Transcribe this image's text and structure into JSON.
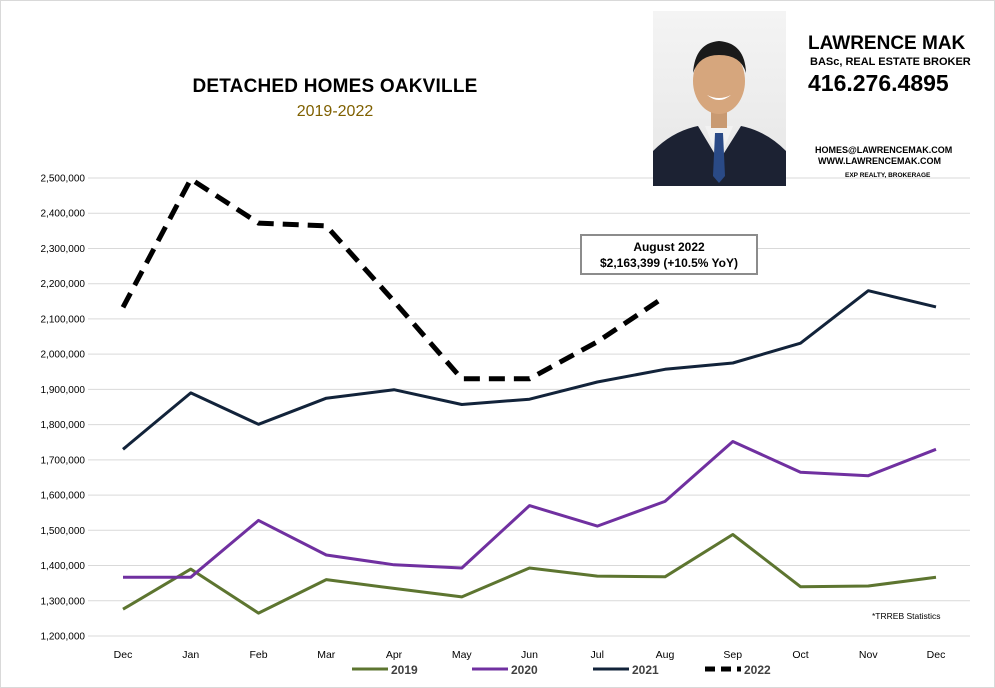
{
  "chart_data": {
    "type": "line",
    "title": "DETACHED HOMES OAKVILLE",
    "subtitle": "2019-2022",
    "categories": [
      "Dec",
      "Jan",
      "Feb",
      "Mar",
      "Apr",
      "May",
      "Jun",
      "Jul",
      "Aug",
      "Sep",
      "Oct",
      "Nov",
      "Dec"
    ],
    "ylim": [
      1200000,
      2500000
    ],
    "yticks": [
      1200000,
      1300000,
      1400000,
      1500000,
      1600000,
      1700000,
      1800000,
      1900000,
      2000000,
      2100000,
      2200000,
      2300000,
      2400000,
      2500000
    ],
    "ytick_labels": [
      "1,200,000",
      "1,300,000",
      "1,400,000",
      "1,500,000",
      "1,600,000",
      "1,700,000",
      "1,800,000",
      "1,900,000",
      "2,000,000",
      "2,100,000",
      "2,200,000",
      "2,300,000",
      "2,400,000",
      "2,500,000"
    ],
    "grid": true,
    "legend_position": "bottom",
    "series": [
      {
        "name": "2019",
        "color": "#5d7530",
        "dashed": false,
        "values": [
          1276000,
          1390000,
          1265000,
          1360000,
          1335000,
          1311000,
          1393000,
          1370000,
          1368000,
          1488000,
          1340000,
          1342000,
          1367000
        ]
      },
      {
        "name": "2020",
        "color": "#7030a0",
        "dashed": false,
        "values": [
          1367000,
          1367000,
          1528000,
          1430000,
          1402000,
          1393000,
          1570000,
          1512000,
          1582000,
          1752000,
          1665000,
          1655000,
          1730000
        ]
      },
      {
        "name": "2021",
        "color": "#12233a",
        "dashed": false,
        "values": [
          1730000,
          1890000,
          1801000,
          1875000,
          1899000,
          1857000,
          1872000,
          1921000,
          1957000,
          1975000,
          2031000,
          2180000,
          2134000
        ]
      },
      {
        "name": "2022",
        "color": "#000000",
        "dashed": true,
        "values": [
          2133000,
          2497000,
          2372000,
          2364000,
          2150000,
          1930000,
          1930000,
          2035000,
          2163399,
          null,
          null,
          null,
          null
        ]
      }
    ],
    "annotation": {
      "line1": "August  2022",
      "line2": "$2,163,399  (+10.5%  YoY)"
    }
  },
  "agent": {
    "name": "LAWRENCE MAK",
    "credentials": "BASc, REAL ESTATE BROKER",
    "phone": "416.276.4895",
    "email": "HOMES@LAWRENCEMAK.COM",
    "website": "WWW.LAWRENCEMAK.COM",
    "brokerage": "EXP REALTY, BROKERAGE"
  },
  "source_note": "*TRREB Statistics"
}
